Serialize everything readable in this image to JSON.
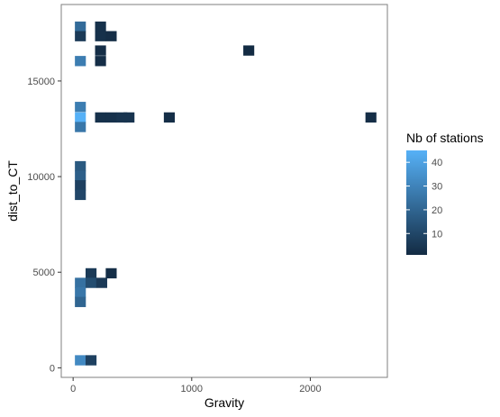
{
  "chart_data": {
    "type": "heatmap",
    "title": "",
    "xlabel": "Gravity",
    "ylabel": "dist_to_CT",
    "xlim": [
      -100,
      2650
    ],
    "ylim": [
      -500,
      19000
    ],
    "x_ticks": [
      0,
      1000,
      2000
    ],
    "x_tick_labels": [
      "0",
      "1000",
      "2000"
    ],
    "y_ticks": [
      0,
      5000,
      10000,
      15000
    ],
    "y_tick_labels": [
      "0",
      "5000",
      "10000",
      "15000"
    ],
    "bin_width": 90,
    "bin_height": 520,
    "grid": false,
    "legend": {
      "title": "Nb of stations",
      "position": "right",
      "min": 1,
      "max": 45,
      "ticks": [
        10,
        20,
        30,
        40
      ],
      "tick_labels": [
        "10",
        "20",
        "30",
        "40"
      ],
      "low_color": "#132B43",
      "high_color": "#56B1F7"
    },
    "cells": [
      {
        "x": 60,
        "y": 17850,
        "count": 22
      },
      {
        "x": 60,
        "y": 17350,
        "count": 6
      },
      {
        "x": 60,
        "y": 16050,
        "count": 28
      },
      {
        "x": 230,
        "y": 17850,
        "count": 3
      },
      {
        "x": 230,
        "y": 17350,
        "count": 3
      },
      {
        "x": 320,
        "y": 17350,
        "count": 2
      },
      {
        "x": 230,
        "y": 16600,
        "count": 2
      },
      {
        "x": 230,
        "y": 16050,
        "count": 2
      },
      {
        "x": 1480,
        "y": 16600,
        "count": 1
      },
      {
        "x": 60,
        "y": 13650,
        "count": 28
      },
      {
        "x": 60,
        "y": 13100,
        "count": 45
      },
      {
        "x": 60,
        "y": 12600,
        "count": 26
      },
      {
        "x": 230,
        "y": 13100,
        "count": 3
      },
      {
        "x": 320,
        "y": 13100,
        "count": 3
      },
      {
        "x": 410,
        "y": 13100,
        "count": 4
      },
      {
        "x": 470,
        "y": 13100,
        "count": 4
      },
      {
        "x": 810,
        "y": 13100,
        "count": 2
      },
      {
        "x": 2510,
        "y": 13100,
        "count": 2
      },
      {
        "x": 60,
        "y": 10550,
        "count": 16
      },
      {
        "x": 60,
        "y": 10050,
        "count": 18
      },
      {
        "x": 60,
        "y": 9550,
        "count": 8
      },
      {
        "x": 60,
        "y": 9050,
        "count": 10
      },
      {
        "x": 60,
        "y": 4450,
        "count": 24
      },
      {
        "x": 60,
        "y": 3950,
        "count": 26
      },
      {
        "x": 60,
        "y": 3450,
        "count": 20
      },
      {
        "x": 150,
        "y": 4950,
        "count": 6
      },
      {
        "x": 150,
        "y": 4450,
        "count": 12
      },
      {
        "x": 240,
        "y": 4450,
        "count": 6
      },
      {
        "x": 320,
        "y": 4950,
        "count": 2
      },
      {
        "x": 60,
        "y": 400,
        "count": 32
      },
      {
        "x": 150,
        "y": 400,
        "count": 8
      }
    ]
  }
}
